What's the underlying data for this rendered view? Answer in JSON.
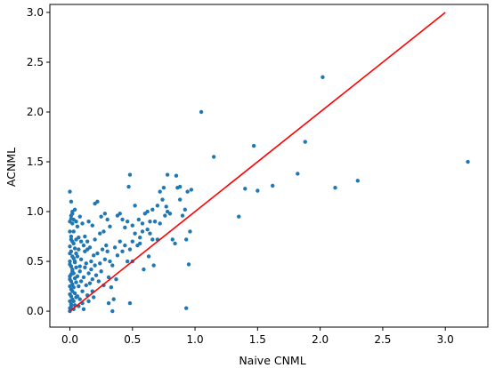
{
  "chart_data": {
    "type": "scatter",
    "title": "",
    "xlabel": "Naive CNML",
    "ylabel": "ACNML",
    "xlim": [
      -0.16,
      3.34
    ],
    "ylim": [
      -0.16,
      3.08
    ],
    "xticks": [
      "0.0",
      "0.5",
      "1.0",
      "1.5",
      "2.0",
      "2.5",
      "3.0"
    ],
    "yticks": [
      "0.0",
      "0.5",
      "1.0",
      "1.5",
      "2.0",
      "2.5",
      "3.0"
    ],
    "grid": false,
    "legend": "none",
    "point_color": "#1f77b4",
    "line_color": "#ff0000",
    "reference_line": {
      "x": [
        0.0,
        3.0
      ],
      "y": [
        0.0,
        3.0
      ]
    },
    "points": [
      [
        0.0,
        0.0
      ],
      [
        0.005,
        0.02
      ],
      [
        0.01,
        0.05
      ],
      [
        0.0,
        0.1
      ],
      [
        0.01,
        0.15
      ],
      [
        0.02,
        0.2
      ],
      [
        0.0,
        0.25
      ],
      [
        0.01,
        0.3
      ],
      [
        0.0,
        0.35
      ],
      [
        0.02,
        0.4
      ],
      [
        0.01,
        0.45
      ],
      [
        0.0,
        0.5
      ],
      [
        0.02,
        0.55
      ],
      [
        0.01,
        0.6
      ],
      [
        0.0,
        0.65
      ],
      [
        0.02,
        0.7
      ],
      [
        0.01,
        0.75
      ],
      [
        0.0,
        0.8
      ],
      [
        0.02,
        0.88
      ],
      [
        0.01,
        0.93
      ],
      [
        0.0,
        0.03
      ],
      [
        0.01,
        0.07
      ],
      [
        0.02,
        0.12
      ],
      [
        0.0,
        0.17
      ],
      [
        0.01,
        0.22
      ],
      [
        0.02,
        0.27
      ],
      [
        0.0,
        0.32
      ],
      [
        0.01,
        0.37
      ],
      [
        0.02,
        0.42
      ],
      [
        0.0,
        0.47
      ],
      [
        0.03,
        0.02
      ],
      [
        0.04,
        0.06
      ],
      [
        0.03,
        0.1
      ],
      [
        0.05,
        0.14
      ],
      [
        0.04,
        0.18
      ],
      [
        0.03,
        0.24
      ],
      [
        0.05,
        0.29
      ],
      [
        0.04,
        0.33
      ],
      [
        0.03,
        0.38
      ],
      [
        0.05,
        0.44
      ],
      [
        0.04,
        0.49
      ],
      [
        0.03,
        0.53
      ],
      [
        0.05,
        0.58
      ],
      [
        0.04,
        0.63
      ],
      [
        0.03,
        0.68
      ],
      [
        0.05,
        0.72
      ],
      [
        0.04,
        0.5
      ],
      [
        0.06,
        0.35
      ],
      [
        0.07,
        0.25
      ],
      [
        0.06,
        0.15
      ],
      [
        0.07,
        0.05
      ],
      [
        0.06,
        0.55
      ],
      [
        0.08,
        0.45
      ],
      [
        0.07,
        0.62
      ],
      [
        0.08,
        0.12
      ],
      [
        0.09,
        0.3
      ],
      [
        0.08,
        0.4
      ],
      [
        0.1,
        0.2
      ],
      [
        0.09,
        0.52
      ],
      [
        0.1,
        0.08
      ],
      [
        0.11,
        0.34
      ],
      [
        0.12,
        0.44
      ],
      [
        0.11,
        0.02
      ],
      [
        0.13,
        0.26
      ],
      [
        0.12,
        0.6
      ],
      [
        0.14,
        0.16
      ],
      [
        0.13,
        0.48
      ],
      [
        0.15,
        0.38
      ],
      [
        0.14,
        0.7
      ],
      [
        0.15,
        0.1
      ],
      [
        0.16,
        0.28
      ],
      [
        0.17,
        0.5
      ],
      [
        0.16,
        0.64
      ],
      [
        0.18,
        0.2
      ],
      [
        0.17,
        0.42
      ],
      [
        0.19,
        0.56
      ],
      [
        0.18,
        0.32
      ],
      [
        0.2,
        0.46
      ],
      [
        0.19,
        0.14
      ],
      [
        0.2,
        0.72
      ],
      [
        0.03,
        0.8
      ],
      [
        0.05,
        0.9
      ],
      [
        0.08,
        0.95
      ],
      [
        0.06,
        0.85
      ],
      [
        0.1,
        0.88
      ],
      [
        0.12,
        0.75
      ],
      [
        0.09,
        0.7
      ],
      [
        0.11,
        0.66
      ],
      [
        0.14,
        0.62
      ],
      [
        0.07,
        0.74
      ],
      [
        0.02,
        1.0
      ],
      [
        0.04,
        1.02
      ],
      [
        0.0,
        0.9
      ],
      [
        0.01,
        1.1
      ],
      [
        0.0,
        1.2
      ],
      [
        0.02,
        0.98
      ],
      [
        0.01,
        0.96
      ],
      [
        0.03,
        0.92
      ],
      [
        0.0,
        0.58
      ],
      [
        0.01,
        0.72
      ],
      [
        0.15,
        0.9
      ],
      [
        0.18,
        0.86
      ],
      [
        0.2,
        1.08
      ],
      [
        0.22,
        1.1
      ],
      [
        0.25,
        0.95
      ],
      [
        0.28,
        0.98
      ],
      [
        0.3,
        0.92
      ],
      [
        0.32,
        0.85
      ],
      [
        0.27,
        0.8
      ],
      [
        0.24,
        0.78
      ],
      [
        0.22,
        0.58
      ],
      [
        0.24,
        0.48
      ],
      [
        0.26,
        0.62
      ],
      [
        0.28,
        0.52
      ],
      [
        0.3,
        0.6
      ],
      [
        0.32,
        0.5
      ],
      [
        0.34,
        0.46
      ],
      [
        0.36,
        0.64
      ],
      [
        0.38,
        0.56
      ],
      [
        0.29,
        0.66
      ],
      [
        0.21,
        0.36
      ],
      [
        0.23,
        0.3
      ],
      [
        0.25,
        0.4
      ],
      [
        0.27,
        0.26
      ],
      [
        0.31,
        0.34
      ],
      [
        0.33,
        0.24
      ],
      [
        0.35,
        0.12
      ],
      [
        0.37,
        0.32
      ],
      [
        0.34,
        0.0
      ],
      [
        0.31,
        0.08
      ],
      [
        0.4,
        0.7
      ],
      [
        0.42,
        0.6
      ],
      [
        0.44,
        0.66
      ],
      [
        0.46,
        0.5
      ],
      [
        0.48,
        0.62
      ],
      [
        0.5,
        0.7
      ],
      [
        0.52,
        0.78
      ],
      [
        0.54,
        0.66
      ],
      [
        0.56,
        0.74
      ],
      [
        0.58,
        0.8
      ],
      [
        0.47,
        1.25
      ],
      [
        0.48,
        1.37
      ],
      [
        0.52,
        1.06
      ],
      [
        0.55,
        0.92
      ],
      [
        0.58,
        0.88
      ],
      [
        0.6,
        0.98
      ],
      [
        0.62,
        0.82
      ],
      [
        0.64,
        0.78
      ],
      [
        0.66,
        0.72
      ],
      [
        0.68,
        0.9
      ],
      [
        0.4,
        0.98
      ],
      [
        0.38,
        0.96
      ],
      [
        0.42,
        0.92
      ],
      [
        0.44,
        0.84
      ],
      [
        0.46,
        0.9
      ],
      [
        0.5,
        0.86
      ],
      [
        0.56,
        0.68
      ],
      [
        0.59,
        0.42
      ],
      [
        0.63,
        0.55
      ],
      [
        0.67,
        0.46
      ],
      [
        0.48,
        0.08
      ],
      [
        0.5,
        0.5
      ],
      [
        0.7,
        0.72
      ],
      [
        0.72,
        0.88
      ],
      [
        0.74,
        1.12
      ],
      [
        0.75,
        1.24
      ],
      [
        0.77,
        1.05
      ],
      [
        0.78,
        1.37
      ],
      [
        0.8,
        0.98
      ],
      [
        0.82,
        0.72
      ],
      [
        0.84,
        0.68
      ],
      [
        0.85,
        1.36
      ],
      [
        0.86,
        1.24
      ],
      [
        0.88,
        1.12
      ],
      [
        0.9,
        0.96
      ],
      [
        0.92,
        1.02
      ],
      [
        0.93,
        0.72
      ],
      [
        0.94,
        1.2
      ],
      [
        0.95,
        0.47
      ],
      [
        0.96,
        0.8
      ],
      [
        0.97,
        1.22
      ],
      [
        0.93,
        0.03
      ],
      [
        0.72,
        1.2
      ],
      [
        0.78,
        1.0
      ],
      [
        0.88,
        1.25
      ],
      [
        0.66,
        1.02
      ],
      [
        0.7,
        1.06
      ],
      [
        0.62,
        1.0
      ],
      [
        0.64,
        0.9
      ],
      [
        0.76,
        0.96
      ],
      [
        1.05,
        2.0
      ],
      [
        1.15,
        1.55
      ],
      [
        1.35,
        0.95
      ],
      [
        1.4,
        1.23
      ],
      [
        1.47,
        1.66
      ],
      [
        1.5,
        1.21
      ],
      [
        1.62,
        1.26
      ],
      [
        1.82,
        1.38
      ],
      [
        1.88,
        1.7
      ],
      [
        2.02,
        2.35
      ],
      [
        2.12,
        1.24
      ],
      [
        2.3,
        1.31
      ],
      [
        3.18,
        1.5
      ]
    ]
  }
}
